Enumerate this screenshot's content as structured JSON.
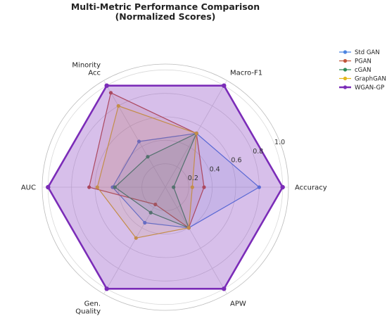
{
  "chart_data": {
    "type": "radar",
    "title_lines": [
      "Multi-Metric Performance Comparison",
      "(Normalized Scores)"
    ],
    "axes": [
      {
        "label_lines": [
          "Accuracy"
        ]
      },
      {
        "label_lines": [
          "Macro-F1"
        ]
      },
      {
        "label_lines": [
          "Minority",
          "Acc"
        ]
      },
      {
        "label_lines": [
          "AUC"
        ]
      },
      {
        "label_lines": [
          "Gen.",
          "Quality"
        ]
      },
      {
        "label_lines": [
          "APW"
        ]
      }
    ],
    "rlim": [
      0,
      1.05
    ],
    "radial_ticks": [
      0.2,
      0.4,
      0.6,
      0.8,
      1.0
    ],
    "radial_tick_labels": [
      "0.2",
      "0.4",
      "0.6",
      "0.8",
      "1.0"
    ],
    "grid": true,
    "legend_position": "top-right",
    "series": [
      {
        "name": "Std GAN",
        "color": "#4c84e0",
        "values": [
          0.8,
          0.53,
          0.45,
          0.45,
          0.35,
          0.4
        ],
        "fill_opacity": 0.12,
        "line_width": 1.2
      },
      {
        "name": "PGAN",
        "color": "#c0553a",
        "values": [
          0.33,
          0.53,
          0.93,
          0.65,
          0.17,
          0.4
        ],
        "fill_opacity": 0.12,
        "line_width": 1.2
      },
      {
        "name": "cGAN",
        "color": "#2e8b57",
        "values": [
          0.07,
          0.53,
          0.3,
          0.43,
          0.25,
          0.4
        ],
        "fill_opacity": 0.12,
        "line_width": 1.2
      },
      {
        "name": "GraphGAN",
        "color": "#e3b81b",
        "values": [
          0.23,
          0.53,
          0.8,
          0.58,
          0.5,
          0.4
        ],
        "fill_opacity": 0.12,
        "line_width": 1.2
      },
      {
        "name": "WGAN-GP",
        "color": "#7b2cb8",
        "values": [
          1.0,
          1.0,
          1.0,
          1.0,
          1.0,
          1.0
        ],
        "fill_opacity": 0.3,
        "line_width": 2.6
      }
    ]
  }
}
